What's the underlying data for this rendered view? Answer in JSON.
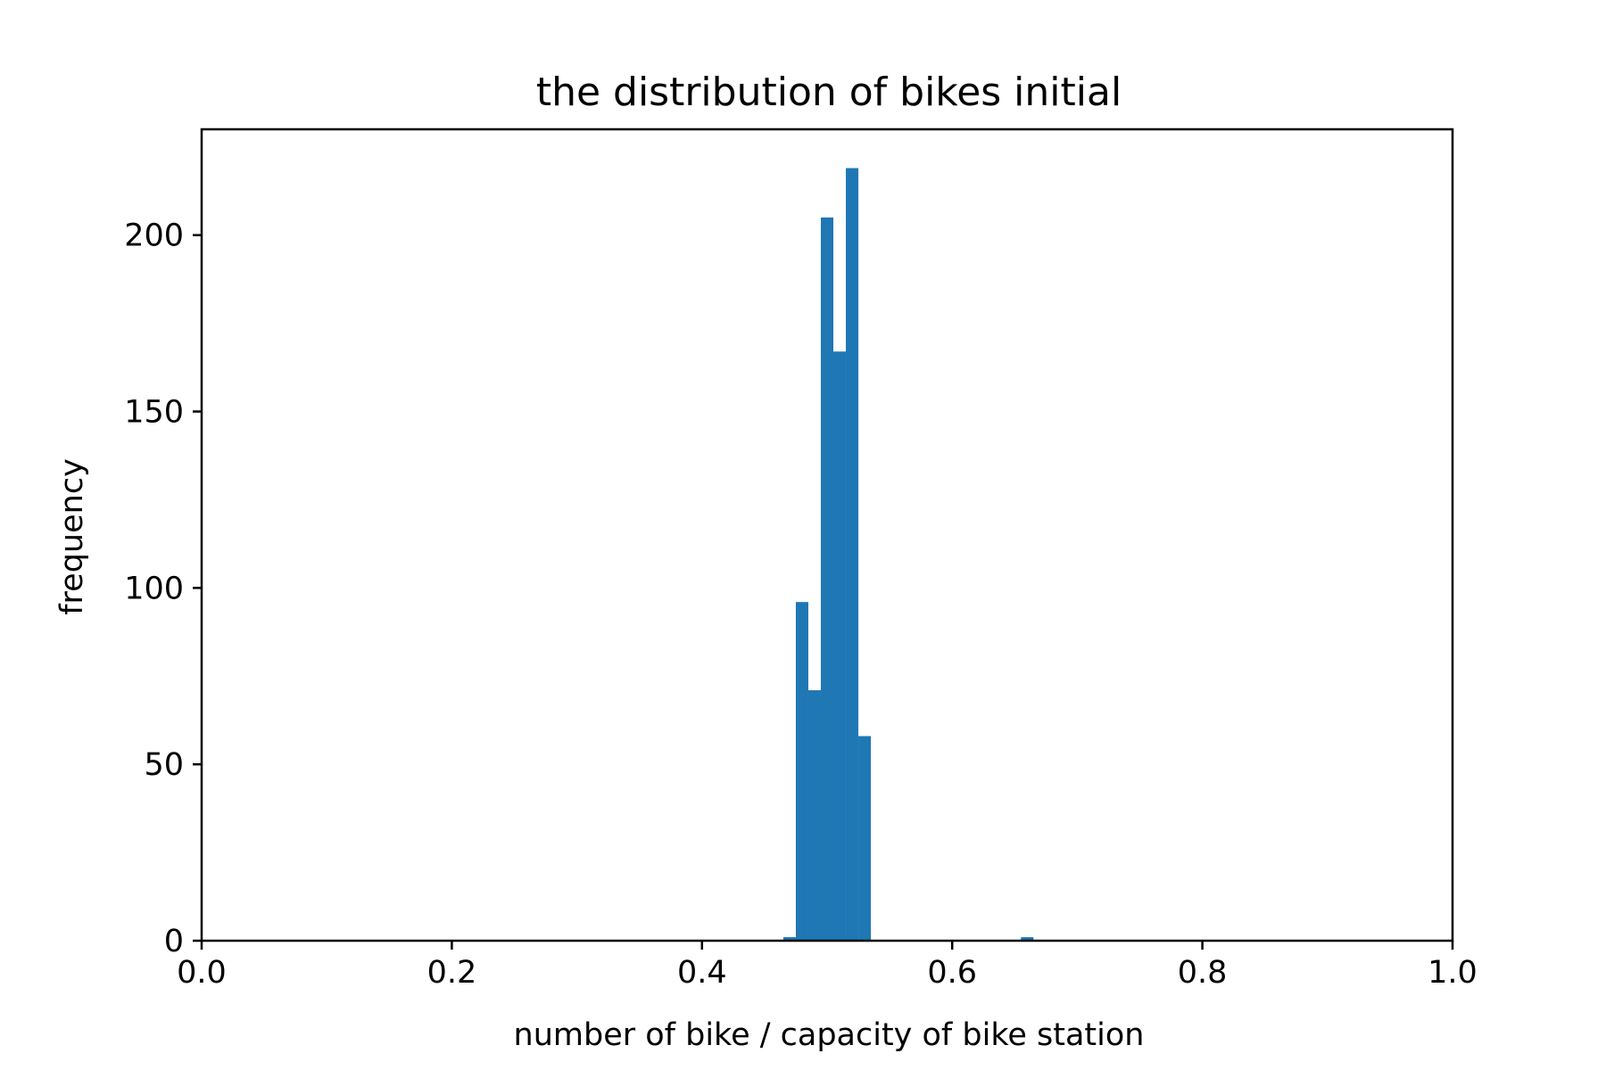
{
  "chart_data": {
    "type": "bar",
    "title": "the distribution of bikes initial",
    "xlabel": "number of bike / capacity of bike station",
    "ylabel": "frequency",
    "xlim": [
      0.0,
      1.0
    ],
    "ylim": [
      0,
      230
    ],
    "xticks": [
      0.0,
      0.2,
      0.4,
      0.6,
      0.8,
      1.0
    ],
    "xtick_labels": [
      "0.0",
      "0.2",
      "0.4",
      "0.6",
      "0.8",
      "1.0"
    ],
    "yticks": [
      0,
      50,
      100,
      150,
      200
    ],
    "ytick_labels": [
      "0",
      "50",
      "100",
      "150",
      "200"
    ],
    "grid": false,
    "bar_color": "#1f77b4",
    "bins": [
      {
        "start": 0.465,
        "end": 0.475,
        "value": 1
      },
      {
        "start": 0.475,
        "end": 0.485,
        "value": 96
      },
      {
        "start": 0.485,
        "end": 0.495,
        "value": 71
      },
      {
        "start": 0.495,
        "end": 0.505,
        "value": 205
      },
      {
        "start": 0.505,
        "end": 0.515,
        "value": 167
      },
      {
        "start": 0.515,
        "end": 0.525,
        "value": 219
      },
      {
        "start": 0.525,
        "end": 0.535,
        "value": 58
      },
      {
        "start": 0.655,
        "end": 0.665,
        "value": 1
      }
    ]
  }
}
